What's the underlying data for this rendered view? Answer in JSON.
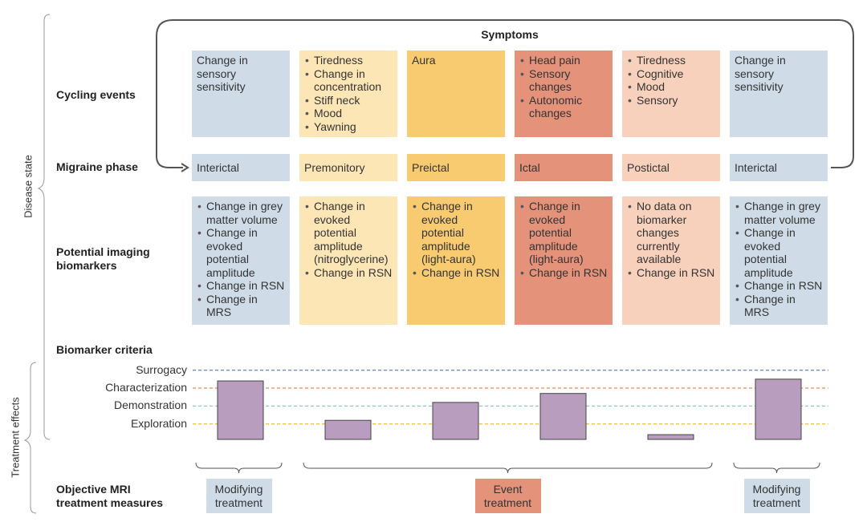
{
  "side_labels": {
    "disease_state": "Disease state",
    "treatment_effects": "Treatment effects"
  },
  "symptoms_title": "Symptoms",
  "row_labels": {
    "cycling": "Cycling events",
    "phase": "Migraine phase",
    "imaging": "Potential imaging biomarkers",
    "criteria": "Biomarker criteria",
    "mri": "Objective MRI treatment measures"
  },
  "columns": [
    {
      "phase": "Interictal",
      "color": "#cfdce8",
      "symptoms_bulleted": false,
      "symptoms": [
        "Change in sensory sensitivity"
      ],
      "biomarkers": [
        "Change in grey matter volume",
        "Change in evoked potential amplitude",
        "Change in RSN",
        "Change in MRS"
      ],
      "criteria_level": 3.4
    },
    {
      "phase": "Premonitory",
      "color": "#fde6b6",
      "symptoms_bulleted": true,
      "symptoms": [
        "Tiredness",
        "Change in concentration",
        "Stiff neck",
        "Mood",
        "Yawning"
      ],
      "biomarkers": [
        "Change in evoked potential amplitude (nitroglycerine)",
        "Change in RSN"
      ],
      "criteria_level": 1.2
    },
    {
      "phase": "Preictal",
      "color": "#f8cb70",
      "symptoms_bulleted": false,
      "symptoms": [
        "Aura"
      ],
      "biomarkers": [
        "Change in evoked potential amplitude (light-aura)",
        "Change in RSN"
      ],
      "criteria_level": 2.2
    },
    {
      "phase": "Ictal",
      "color": "#e5927a",
      "symptoms_bulleted": true,
      "symptoms": [
        "Head pain",
        "Sensory changes",
        "Autonomic changes"
      ],
      "biomarkers": [
        "Change in evoked potential amplitude (light-aura)",
        "Change in RSN"
      ],
      "criteria_level": 2.7
    },
    {
      "phase": "Postictal",
      "color": "#f8d1bd",
      "symptoms_bulleted": true,
      "symptoms": [
        "Tiredness",
        "Cognitive",
        "Mood",
        "Sensory"
      ],
      "biomarkers": [
        "No data on biomarker changes currently available",
        "Change in RSN"
      ],
      "criteria_level": 0.4
    },
    {
      "phase": "Interictal",
      "color": "#cfdce8",
      "symptoms_bulleted": false,
      "symptoms": [
        "Change in sensory sensitivity"
      ],
      "biomarkers": [
        "Change in grey matter volume",
        "Change in evoked potential amplitude",
        "Change in RSN",
        "Change in MRS"
      ],
      "criteria_level": 3.5
    }
  ],
  "criteria": {
    "ylim": [
      0,
      4
    ],
    "bar_color": "#b99dbf",
    "yticks": [
      {
        "value": 1,
        "label": "Exploration",
        "color": "#f2c14e"
      },
      {
        "value": 2,
        "label": "Demonstration",
        "color": "#8fc9c4"
      },
      {
        "value": 3,
        "label": "Characterization",
        "color": "#ea8a5e"
      },
      {
        "value": 4,
        "label": "Surrogacy",
        "color": "#6d8cc8"
      }
    ]
  },
  "treatment": [
    {
      "label": "Modifying treatment",
      "color": "#cfdce8",
      "from": 0,
      "to": 0
    },
    {
      "label": "Event treatment",
      "color": "#e5927a",
      "from": 1,
      "to": 4
    },
    {
      "label": "Modifying treatment",
      "color": "#cfdce8",
      "from": 5,
      "to": 5
    }
  ]
}
